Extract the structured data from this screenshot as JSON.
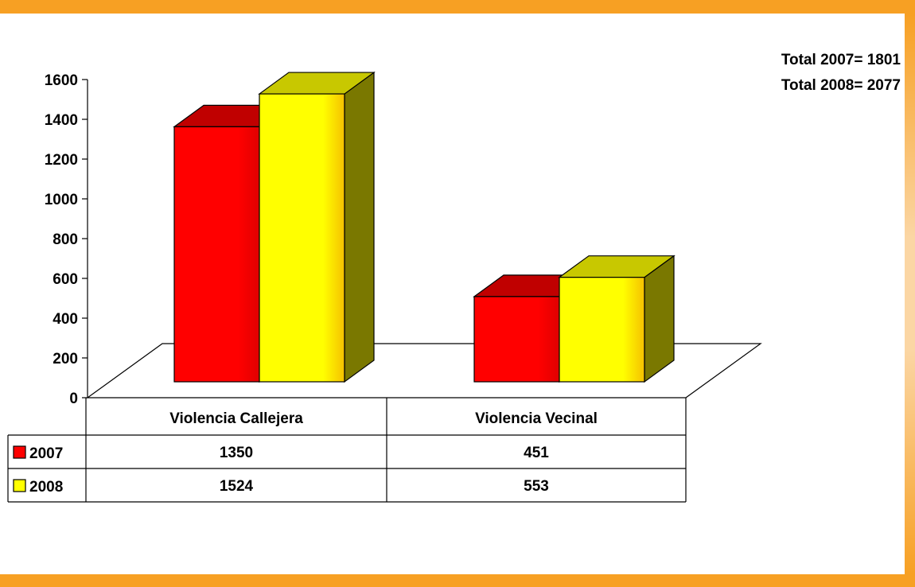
{
  "chart_data": {
    "type": "bar",
    "categories": [
      "Violencia Callejera",
      "Violencia Vecinal"
    ],
    "series": [
      {
        "name": "2007",
        "values": [
          1350,
          451
        ],
        "color": "#ff0000",
        "top_color": "#c00000",
        "side_color": "#800000"
      },
      {
        "name": "2008",
        "values": [
          1524,
          553
        ],
        "color": "#ffff00",
        "top_color": "#c8c800",
        "side_color": "#7a7800"
      }
    ],
    "ylim": [
      0,
      1600
    ],
    "yticks": [
      "0",
      "200",
      "400",
      "600",
      "800",
      "1000",
      "1200",
      "1400",
      "1600"
    ],
    "title": "",
    "xlabel": "",
    "ylabel": "",
    "data_table": true,
    "three_d": true
  },
  "annotations": {
    "total_2007": "Total 2007= 1801",
    "total_2008": "Total 2008= 2077"
  },
  "frame": {
    "accent_color": "#f7a023"
  }
}
